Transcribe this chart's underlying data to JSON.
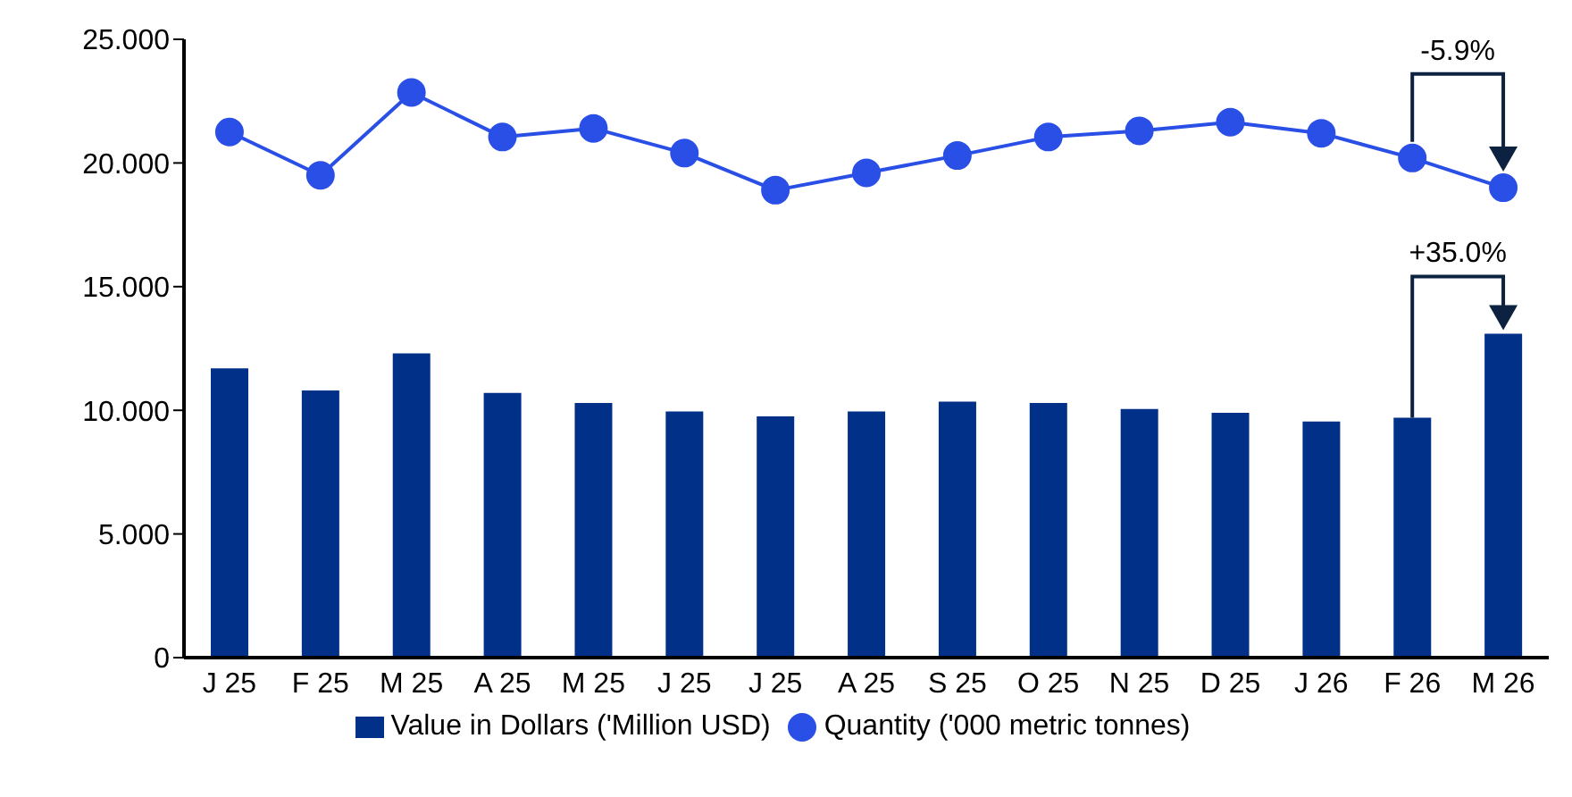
{
  "chart_data": {
    "type": "bar",
    "categories": [
      "J 25",
      "F 25",
      "M 25",
      "A 25",
      "M 25",
      "J 25",
      "J 25",
      "A 25",
      "S 25",
      "O 25",
      "N 25",
      "D 25",
      "J 26",
      "F 26",
      "M 26"
    ],
    "series": [
      {
        "name": "Value in Dollars ('Million USD)",
        "color": "#003087",
        "values": [
          11.7,
          10.8,
          12.3,
          10.7,
          10.3,
          9.95,
          9.75,
          9.95,
          10.35,
          10.3,
          10.05,
          9.9,
          9.55,
          9.7,
          13.1
        ]
      },
      {
        "name": "Quantity ('000 metric tonnes)",
        "type": "line",
        "color": "#2a4fe6",
        "values": [
          21.25,
          19.5,
          22.85,
          21.05,
          21.4,
          20.4,
          18.9,
          19.6,
          20.3,
          21.05,
          21.3,
          21.65,
          21.2,
          20.2,
          19.0
        ]
      }
    ],
    "ylim": [
      0,
      25
    ],
    "yticks": [
      0,
      {
        "value": 5,
        "label": "5.000"
      },
      {
        "value": 10,
        "label": "10.000"
      },
      {
        "value": 15,
        "label": "15.000"
      },
      {
        "value": 20,
        "label": "20.000"
      },
      {
        "value": 25,
        "label": "25.000"
      }
    ],
    "annotations": [
      "+35.0%",
      "-5.9%"
    ],
    "marker": "circle",
    "grid": false,
    "legend": "bottom"
  }
}
